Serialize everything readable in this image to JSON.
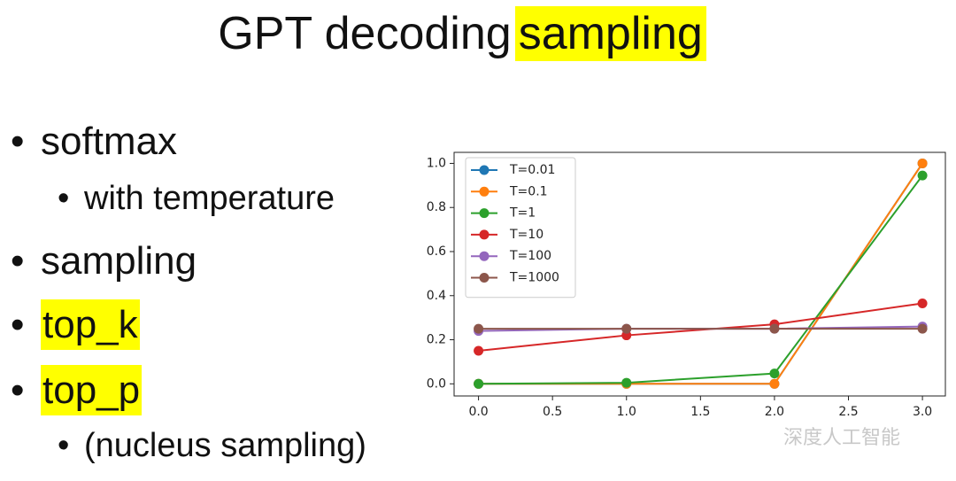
{
  "slide": {
    "title": "GPT decoding",
    "title_highlight": "sampling",
    "bullets": [
      {
        "text": "softmax",
        "level": 1,
        "highlight": false
      },
      {
        "text": "with temperature",
        "level": 2,
        "highlight": false
      },
      {
        "text": "sampling",
        "level": 1,
        "highlight": false
      },
      {
        "text": "top_k",
        "level": 1,
        "highlight": true
      },
      {
        "text": "top_p",
        "level": 1,
        "highlight": true
      },
      {
        "text": "(nucleus sampling)",
        "level": 2,
        "highlight": false
      }
    ]
  },
  "chart_data": {
    "type": "line",
    "x": [
      0,
      1,
      2,
      3
    ],
    "series": [
      {
        "name": "T=0.01",
        "color": "#1f77b4",
        "values": [
          0,
          0,
          0,
          1
        ]
      },
      {
        "name": "T=0.1",
        "color": "#ff7f0e",
        "values": [
          0,
          0,
          0,
          1
        ]
      },
      {
        "name": "T=1",
        "color": "#2ca02c",
        "values": [
          0,
          0.005,
          0.047,
          0.945
        ]
      },
      {
        "name": "T=10",
        "color": "#d62728",
        "values": [
          0.15,
          0.22,
          0.27,
          0.365
        ]
      },
      {
        "name": "T=100",
        "color": "#9467bd",
        "values": [
          0.24,
          0.25,
          0.25,
          0.26
        ]
      },
      {
        "name": "T=1000",
        "color": "#8c564b",
        "values": [
          0.25,
          0.25,
          0.25,
          0.25
        ]
      }
    ],
    "xlim": [
      -0.165,
      3.155
    ],
    "xticks": [
      {
        "value": 0,
        "label": "0.0"
      },
      {
        "value": 0.5,
        "label": "0.5"
      },
      {
        "value": 1,
        "label": "1.0"
      },
      {
        "value": 1.5,
        "label": "1.5"
      },
      {
        "value": 2,
        "label": "2.0"
      },
      {
        "value": 2.5,
        "label": "2.5"
      },
      {
        "value": 3,
        "label": "3.0"
      }
    ],
    "ylim": [
      -0.055,
      1.05
    ],
    "yticks": [
      {
        "value": 0,
        "label": "0.0"
      },
      {
        "value": 0.2,
        "label": "0.2"
      },
      {
        "value": 0.4,
        "label": "0.4"
      },
      {
        "value": 0.6,
        "label": "0.6"
      },
      {
        "value": 0.8,
        "label": "0.8"
      },
      {
        "value": 1,
        "label": "1.0"
      }
    ],
    "legend": "upper left",
    "grid": false
  },
  "watermark": "深度人工智能"
}
